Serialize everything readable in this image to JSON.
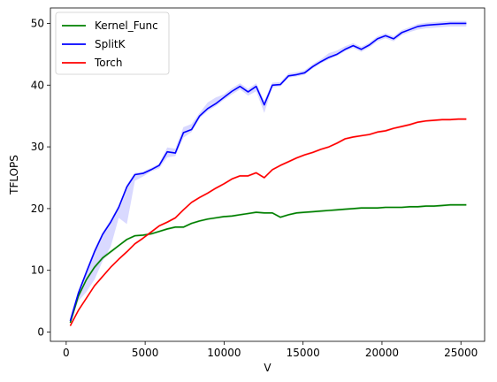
{
  "chart_data": {
    "type": "line",
    "title": "",
    "xlabel": "V",
    "ylabel": "TFLOPS",
    "xlim": [
      -1000,
      26500
    ],
    "ylim": [
      -1.5,
      52.5
    ],
    "x_ticks": [
      0,
      5000,
      10000,
      15000,
      20000,
      25000
    ],
    "y_ticks": [
      0,
      10,
      20,
      30,
      40,
      50
    ],
    "grid": false,
    "legend_position": "upper-left",
    "x": [
      256,
      768,
      1280,
      1792,
      2304,
      2816,
      3328,
      3840,
      4352,
      4864,
      5376,
      5888,
      6400,
      6912,
      7424,
      7936,
      8448,
      8960,
      9472,
      9984,
      10496,
      11008,
      11520,
      12032,
      12544,
      13056,
      13568,
      14080,
      14592,
      15104,
      15616,
      16128,
      16640,
      17152,
      17664,
      18176,
      18688,
      19200,
      19712,
      20224,
      20736,
      21248,
      21760,
      22272,
      22784,
      23296,
      23808,
      24320,
      24832,
      25344
    ],
    "series": [
      {
        "name": "Kernel_Func",
        "color": "#008000",
        "values": [
          1.5,
          5.8,
          8.5,
          10.5,
          12.0,
          13.0,
          14.0,
          15.0,
          15.6,
          15.7,
          15.9,
          16.3,
          16.7,
          17.0,
          17.0,
          17.6,
          18.0,
          18.3,
          18.5,
          18.7,
          18.8,
          19.0,
          19.2,
          19.4,
          19.3,
          19.3,
          18.6,
          19.0,
          19.3,
          19.4,
          19.5,
          19.6,
          19.7,
          19.8,
          19.9,
          20.0,
          20.1,
          20.1,
          20.1,
          20.2,
          20.2,
          20.2,
          20.3,
          20.3,
          20.4,
          20.4,
          20.5,
          20.6,
          20.6,
          20.6
        ],
        "band_low": [
          1.4,
          5.5,
          8.2,
          10.2,
          11.7,
          12.7,
          13.8,
          14.8,
          15.4,
          15.5,
          15.7,
          16.1,
          16.5,
          16.8,
          16.8,
          17.4,
          17.8,
          18.1,
          18.3,
          18.5,
          18.6,
          18.8,
          19.0,
          19.2,
          19.1,
          19.1,
          18.4,
          18.8,
          19.1,
          19.2,
          19.3,
          19.4,
          19.5,
          19.6,
          19.7,
          19.8,
          19.9,
          19.9,
          19.9,
          20.0,
          20.0,
          20.0,
          20.1,
          20.1,
          20.2,
          20.2,
          20.3,
          20.4,
          20.4,
          20.4
        ],
        "band_high": [
          1.6,
          6.1,
          8.8,
          10.8,
          12.3,
          13.3,
          14.2,
          15.2,
          15.8,
          15.9,
          16.1,
          16.5,
          16.9,
          17.2,
          17.2,
          17.8,
          18.2,
          18.5,
          18.7,
          18.9,
          19.0,
          19.2,
          19.4,
          19.6,
          19.5,
          19.5,
          18.8,
          19.2,
          19.5,
          19.6,
          19.7,
          19.8,
          19.9,
          20.0,
          20.1,
          20.2,
          20.3,
          20.3,
          20.3,
          20.4,
          20.4,
          20.4,
          20.5,
          20.5,
          20.6,
          20.6,
          20.7,
          20.8,
          20.8,
          20.8
        ]
      },
      {
        "name": "SplitK",
        "color": "#0000ff",
        "values": [
          1.8,
          6.3,
          9.7,
          13.0,
          15.8,
          17.8,
          20.2,
          23.5,
          25.5,
          25.7,
          26.3,
          27.0,
          29.2,
          29.0,
          32.3,
          32.8,
          35.0,
          36.2,
          37.0,
          38.0,
          39.0,
          39.8,
          38.9,
          39.8,
          36.8,
          40.0,
          40.1,
          41.5,
          41.7,
          42.0,
          43.0,
          43.8,
          44.5,
          45.0,
          45.8,
          46.4,
          45.8,
          46.5,
          47.5,
          48.0,
          47.5,
          48.5,
          49.0,
          49.5,
          49.7,
          49.8,
          49.9,
          50.0,
          50.0,
          50.0
        ],
        "band_low": [
          1.5,
          5.0,
          6.5,
          8.5,
          11.5,
          13.8,
          18.5,
          17.5,
          24.5,
          25.2,
          26.0,
          26.5,
          28.3,
          28.5,
          31.5,
          32.4,
          34.6,
          35.8,
          36.6,
          37.6,
          38.5,
          39.3,
          38.3,
          39.0,
          35.5,
          39.6,
          39.8,
          41.2,
          41.4,
          41.7,
          42.7,
          43.5,
          44.2,
          44.7,
          45.5,
          46.0,
          45.4,
          46.1,
          47.1,
          47.6,
          47.1,
          48.1,
          48.6,
          49.0,
          49.2,
          49.3,
          49.4,
          49.5,
          49.5,
          49.5
        ],
        "band_high": [
          2.0,
          6.6,
          10.2,
          13.5,
          16.2,
          18.2,
          20.6,
          23.9,
          25.8,
          26.0,
          26.6,
          27.3,
          29.9,
          29.7,
          33.2,
          33.7,
          35.5,
          37.2,
          38.0,
          38.5,
          39.5,
          40.3,
          39.4,
          40.3,
          37.5,
          40.4,
          40.5,
          41.9,
          42.1,
          42.4,
          43.4,
          44.2,
          45.2,
          45.6,
          46.3,
          46.8,
          46.2,
          46.9,
          47.9,
          48.4,
          47.9,
          48.9,
          49.4,
          49.9,
          50.1,
          50.2,
          50.3,
          50.4,
          50.4,
          50.4
        ]
      },
      {
        "name": "Torch",
        "color": "#ff0000",
        "values": [
          1.0,
          3.5,
          5.5,
          7.5,
          9.0,
          10.5,
          11.8,
          13.0,
          14.3,
          15.2,
          16.2,
          17.2,
          17.8,
          18.5,
          19.8,
          21.0,
          21.8,
          22.5,
          23.3,
          24.0,
          24.8,
          25.3,
          25.3,
          25.8,
          25.0,
          26.3,
          27.0,
          27.6,
          28.2,
          28.7,
          29.1,
          29.6,
          30.0,
          30.6,
          31.3,
          31.6,
          31.8,
          32.0,
          32.4,
          32.6,
          33.0,
          33.3,
          33.6,
          34.0,
          34.2,
          34.3,
          34.4,
          34.4,
          34.5,
          34.5
        ],
        "band_low": [
          0.9,
          3.3,
          5.3,
          7.3,
          8.8,
          10.3,
          11.6,
          12.8,
          14.1,
          15.0,
          16.0,
          17.0,
          17.6,
          18.3,
          19.6,
          20.8,
          21.6,
          22.3,
          23.1,
          23.8,
          24.6,
          25.1,
          25.1,
          25.6,
          24.8,
          26.1,
          26.8,
          27.4,
          28.0,
          28.5,
          28.9,
          29.4,
          29.8,
          30.4,
          31.1,
          31.4,
          31.6,
          31.8,
          32.2,
          32.4,
          32.8,
          33.1,
          33.4,
          33.8,
          34.0,
          34.1,
          34.2,
          34.2,
          34.3,
          34.3
        ],
        "band_high": [
          1.1,
          3.7,
          5.7,
          7.7,
          9.2,
          10.7,
          12.0,
          13.2,
          14.5,
          15.4,
          16.4,
          17.4,
          18.0,
          18.7,
          20.0,
          21.2,
          22.0,
          22.7,
          23.5,
          24.2,
          25.0,
          25.5,
          25.5,
          26.0,
          25.2,
          26.5,
          27.2,
          27.8,
          28.4,
          28.9,
          29.3,
          29.8,
          30.2,
          30.8,
          31.5,
          31.8,
          32.0,
          32.2,
          32.6,
          32.8,
          33.2,
          33.5,
          33.8,
          34.2,
          34.4,
          34.5,
          34.6,
          34.6,
          34.7,
          34.7
        ]
      }
    ]
  }
}
